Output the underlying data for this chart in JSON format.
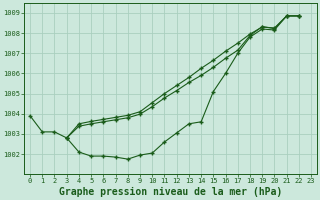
{
  "title": "Graphe pression niveau de la mer (hPa)",
  "background_color": "#cce8dc",
  "grid_color": "#aacfbf",
  "line_color": "#1a5c1a",
  "xlim": [
    -0.5,
    23.5
  ],
  "ylim": [
    1001.0,
    1009.5
  ],
  "yticks": [
    1002,
    1003,
    1004,
    1005,
    1006,
    1007,
    1008,
    1009
  ],
  "xticks": [
    0,
    1,
    2,
    3,
    4,
    5,
    6,
    7,
    8,
    9,
    10,
    11,
    12,
    13,
    14,
    15,
    16,
    17,
    18,
    19,
    20,
    21,
    22,
    23
  ],
  "s1_x": [
    0,
    1,
    2,
    3,
    4,
    5,
    6,
    7,
    8,
    9,
    10,
    11,
    12,
    13,
    14,
    15,
    16,
    17,
    18,
    19,
    20,
    21,
    22
  ],
  "s1_y": [
    1003.9,
    1003.1,
    1003.1,
    1002.8,
    1002.1,
    1001.9,
    1001.9,
    1001.85,
    1001.75,
    1001.95,
    1002.05,
    1002.6,
    1003.05,
    1003.5,
    1003.6,
    1005.1,
    1006.0,
    1007.0,
    1007.8,
    1008.2,
    1008.15,
    1008.85,
    1008.85
  ],
  "s2_x": [
    3,
    4,
    5,
    6,
    7,
    8,
    9,
    10,
    11,
    12,
    13,
    14,
    15,
    16,
    17,
    18,
    19,
    20,
    21,
    22
  ],
  "s2_y": [
    1002.8,
    1003.5,
    1003.62,
    1003.72,
    1003.82,
    1003.92,
    1004.1,
    1004.55,
    1005.0,
    1005.4,
    1005.8,
    1006.25,
    1006.65,
    1007.1,
    1007.5,
    1007.95,
    1008.3,
    1008.25,
    1008.85,
    1008.85
  ],
  "s3_x": [
    3,
    4,
    5,
    6,
    7,
    8,
    9,
    10,
    11,
    12,
    13,
    14,
    15,
    16,
    17,
    18,
    19,
    20,
    21,
    22
  ],
  "s3_y": [
    1002.8,
    1003.38,
    1003.5,
    1003.6,
    1003.7,
    1003.8,
    1003.98,
    1004.35,
    1004.78,
    1005.15,
    1005.55,
    1005.9,
    1006.3,
    1006.75,
    1007.15,
    1007.88,
    1008.32,
    1008.22,
    1008.85,
    1008.85
  ],
  "tick_fontsize": 5,
  "title_fontsize": 7
}
